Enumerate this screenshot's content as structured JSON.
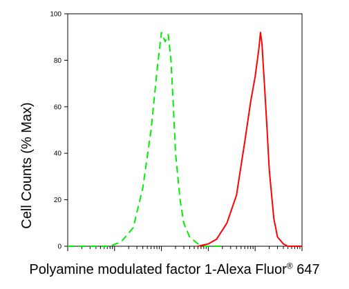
{
  "chart_data": {
    "type": "line",
    "title": "",
    "xlabel_main": "Polyamine modulated factor 1-Alexa Fluor",
    "xlabel_sup": "®",
    "xlabel_tail": " 647",
    "ylabel": "Cell Counts (% Max)",
    "x_scale": "log",
    "xlim": [
      1,
      100000
    ],
    "ylim": [
      0,
      100
    ],
    "y_ticks": [
      0,
      20,
      40,
      60,
      80,
      100
    ],
    "grid": false,
    "legend": "none",
    "series": [
      {
        "color": "#00ee00",
        "line_style": "dashed",
        "x": [
          1,
          2,
          4,
          8,
          14,
          25,
          40,
          60,
          80,
          100,
          120,
          140,
          160,
          180,
          200,
          250,
          300,
          400,
          600,
          900,
          1200,
          2000
        ],
        "y": [
          0,
          0,
          0,
          0,
          2,
          8,
          25,
          50,
          75,
          92,
          88,
          91,
          80,
          60,
          40,
          20,
          10,
          4,
          1,
          0,
          0,
          0
        ]
      },
      {
        "color": "#ff0000",
        "line_style": "solid",
        "x": [
          600,
          1000,
          1500,
          2500,
          4000,
          6000,
          8000,
          10000,
          12000,
          13000,
          14000,
          15000,
          16000,
          18000,
          20000,
          25000,
          30000,
          40000,
          50000,
          60000,
          80000,
          100000
        ],
        "y": [
          0,
          1,
          3,
          10,
          22,
          45,
          62,
          73,
          85,
          92,
          87,
          77,
          68,
          50,
          33,
          12,
          4,
          1,
          0,
          0,
          0,
          0
        ]
      }
    ]
  }
}
